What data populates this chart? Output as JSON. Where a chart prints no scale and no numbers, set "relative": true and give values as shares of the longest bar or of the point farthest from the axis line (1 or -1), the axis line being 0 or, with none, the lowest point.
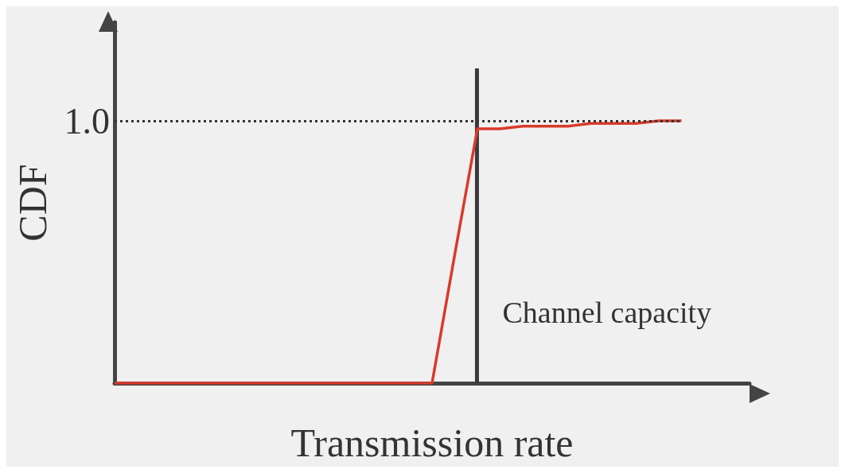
{
  "chart_data": {
    "type": "line",
    "relative": true,
    "xlabel": "Transmission rate",
    "ylabel": "CDF",
    "grid": false,
    "marker": "none",
    "line_style": "solid",
    "categories": [
      null,
      null,
      null,
      null,
      null,
      null,
      null,
      null,
      null,
      null,
      null,
      null,
      null,
      null,
      null,
      null,
      null,
      null,
      null,
      null,
      null,
      null,
      null,
      null,
      null,
      null,
      null,
      null,
      null
    ],
    "series": [
      {
        "color": "#d93a2b",
        "values": [
          0,
          0,
          0,
          0,
          0,
          0,
          0,
          0,
          0,
          0,
          0,
          0,
          0,
          0,
          0,
          0.49,
          0.97,
          0.97,
          0.98,
          0.98,
          0.98,
          0.99,
          0.99,
          0.99,
          1,
          1,
          null,
          null,
          null
        ]
      }
    ],
    "ref_lines": [
      {
        "axis": "y",
        "value": 1,
        "label": "1.0",
        "color": "#333333",
        "line_style": "dotted"
      }
    ],
    "annotations": [
      "Channel capacity"
    ]
  }
}
